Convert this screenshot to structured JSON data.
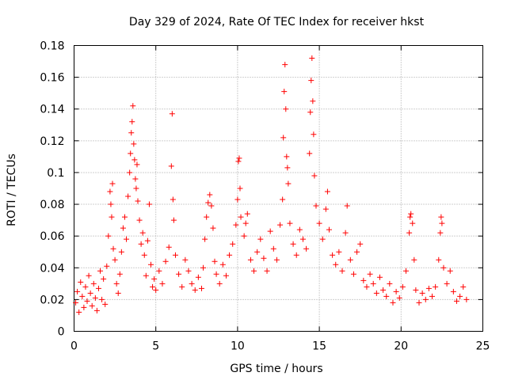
{
  "chart_data": {
    "type": "scatter",
    "title": "Day 329 of 2024, Rate Of TEC Index for receiver hkst",
    "xlabel": "GPS time / hours",
    "ylabel": "ROTI / TECUs",
    "xlim": [
      0,
      25
    ],
    "ylim": [
      0,
      0.18
    ],
    "xticks": [
      0,
      5,
      10,
      15,
      20,
      25
    ],
    "xtick_labels": [
      "0",
      "5",
      "10",
      "15",
      "20",
      "25"
    ],
    "yticks": [
      0,
      0.02,
      0.04,
      0.06,
      0.08,
      0.1,
      0.12,
      0.14,
      0.16,
      0.18
    ],
    "ytick_labels": [
      "0",
      "0.02",
      "0.04",
      "0.06",
      "0.08",
      "0.1",
      "0.12",
      "0.14",
      "0.16",
      "0.18"
    ],
    "grid": true,
    "marker": "+",
    "series": [
      {
        "color": "#ff0000",
        "points": [
          [
            0.1,
            0.018
          ],
          [
            0.2,
            0.025
          ],
          [
            0.3,
            0.012
          ],
          [
            0.4,
            0.031
          ],
          [
            0.5,
            0.022
          ],
          [
            0.6,
            0.015
          ],
          [
            0.7,
            0.028
          ],
          [
            0.8,
            0.019
          ],
          [
            0.9,
            0.035
          ],
          [
            1.0,
            0.024
          ],
          [
            1.1,
            0.016
          ],
          [
            1.2,
            0.03
          ],
          [
            1.3,
            0.021
          ],
          [
            1.4,
            0.013
          ],
          [
            1.5,
            0.027
          ],
          [
            1.6,
            0.038
          ],
          [
            1.7,
            0.02
          ],
          [
            1.8,
            0.033
          ],
          [
            1.9,
            0.017
          ],
          [
            2.0,
            0.041
          ],
          [
            2.1,
            0.06
          ],
          [
            2.2,
            0.088
          ],
          [
            2.25,
            0.08
          ],
          [
            2.3,
            0.072
          ],
          [
            2.35,
            0.093
          ],
          [
            2.4,
            0.052
          ],
          [
            2.5,
            0.045
          ],
          [
            2.6,
            0.03
          ],
          [
            2.7,
            0.024
          ],
          [
            2.8,
            0.036
          ],
          [
            2.9,
            0.05
          ],
          [
            3.0,
            0.065
          ],
          [
            3.1,
            0.072
          ],
          [
            3.2,
            0.058
          ],
          [
            3.3,
            0.085
          ],
          [
            3.4,
            0.1
          ],
          [
            3.45,
            0.112
          ],
          [
            3.5,
            0.125
          ],
          [
            3.55,
            0.132
          ],
          [
            3.6,
            0.142
          ],
          [
            3.65,
            0.118
          ],
          [
            3.7,
            0.108
          ],
          [
            3.75,
            0.096
          ],
          [
            3.8,
            0.09
          ],
          [
            3.85,
            0.105
          ],
          [
            3.9,
            0.082
          ],
          [
            4.0,
            0.07
          ],
          [
            4.1,
            0.055
          ],
          [
            4.2,
            0.062
          ],
          [
            4.3,
            0.048
          ],
          [
            4.4,
            0.035
          ],
          [
            4.5,
            0.057
          ],
          [
            4.6,
            0.08
          ],
          [
            4.7,
            0.042
          ],
          [
            4.8,
            0.028
          ],
          [
            4.9,
            0.033
          ],
          [
            5.0,
            0.026
          ],
          [
            5.2,
            0.038
          ],
          [
            5.4,
            0.03
          ],
          [
            5.6,
            0.044
          ],
          [
            5.8,
            0.053
          ],
          [
            5.95,
            0.104
          ],
          [
            6.0,
            0.137
          ],
          [
            6.05,
            0.083
          ],
          [
            6.1,
            0.07
          ],
          [
            6.2,
            0.048
          ],
          [
            6.4,
            0.036
          ],
          [
            6.6,
            0.028
          ],
          [
            6.8,
            0.045
          ],
          [
            7.0,
            0.038
          ],
          [
            7.2,
            0.03
          ],
          [
            7.4,
            0.026
          ],
          [
            7.6,
            0.034
          ],
          [
            7.8,
            0.027
          ],
          [
            7.9,
            0.04
          ],
          [
            8.0,
            0.058
          ],
          [
            8.1,
            0.072
          ],
          [
            8.2,
            0.081
          ],
          [
            8.3,
            0.086
          ],
          [
            8.4,
            0.079
          ],
          [
            8.5,
            0.065
          ],
          [
            8.6,
            0.044
          ],
          [
            8.7,
            0.036
          ],
          [
            8.9,
            0.03
          ],
          [
            9.1,
            0.042
          ],
          [
            9.3,
            0.035
          ],
          [
            9.5,
            0.048
          ],
          [
            9.7,
            0.055
          ],
          [
            9.9,
            0.067
          ],
          [
            10.0,
            0.083
          ],
          [
            10.05,
            0.107
          ],
          [
            10.1,
            0.109
          ],
          [
            10.15,
            0.09
          ],
          [
            10.2,
            0.072
          ],
          [
            10.4,
            0.06
          ],
          [
            10.5,
            0.068
          ],
          [
            10.6,
            0.074
          ],
          [
            10.8,
            0.045
          ],
          [
            11.0,
            0.038
          ],
          [
            11.2,
            0.05
          ],
          [
            11.4,
            0.058
          ],
          [
            11.6,
            0.046
          ],
          [
            11.8,
            0.038
          ],
          [
            12.0,
            0.063
          ],
          [
            12.2,
            0.052
          ],
          [
            12.4,
            0.045
          ],
          [
            12.6,
            0.067
          ],
          [
            12.75,
            0.083
          ],
          [
            12.8,
            0.122
          ],
          [
            12.85,
            0.151
          ],
          [
            12.9,
            0.168
          ],
          [
            12.95,
            0.14
          ],
          [
            13.0,
            0.11
          ],
          [
            13.05,
            0.103
          ],
          [
            13.1,
            0.093
          ],
          [
            13.2,
            0.068
          ],
          [
            13.4,
            0.055
          ],
          [
            13.6,
            0.048
          ],
          [
            13.8,
            0.064
          ],
          [
            14.0,
            0.058
          ],
          [
            14.2,
            0.052
          ],
          [
            14.4,
            0.112
          ],
          [
            14.45,
            0.138
          ],
          [
            14.5,
            0.158
          ],
          [
            14.55,
            0.172
          ],
          [
            14.6,
            0.145
          ],
          [
            14.65,
            0.124
          ],
          [
            14.7,
            0.098
          ],
          [
            14.8,
            0.079
          ],
          [
            15.0,
            0.068
          ],
          [
            15.2,
            0.058
          ],
          [
            15.4,
            0.077
          ],
          [
            15.5,
            0.088
          ],
          [
            15.6,
            0.064
          ],
          [
            15.8,
            0.048
          ],
          [
            16.0,
            0.042
          ],
          [
            16.2,
            0.05
          ],
          [
            16.4,
            0.038
          ],
          [
            16.6,
            0.062
          ],
          [
            16.7,
            0.079
          ],
          [
            16.9,
            0.045
          ],
          [
            17.1,
            0.036
          ],
          [
            17.3,
            0.05
          ],
          [
            17.5,
            0.055
          ],
          [
            17.7,
            0.032
          ],
          [
            17.9,
            0.028
          ],
          [
            18.1,
            0.036
          ],
          [
            18.3,
            0.03
          ],
          [
            18.5,
            0.024
          ],
          [
            18.7,
            0.034
          ],
          [
            18.9,
            0.026
          ],
          [
            19.1,
            0.022
          ],
          [
            19.3,
            0.03
          ],
          [
            19.5,
            0.018
          ],
          [
            19.7,
            0.025
          ],
          [
            19.9,
            0.021
          ],
          [
            20.1,
            0.028
          ],
          [
            20.3,
            0.038
          ],
          [
            20.5,
            0.062
          ],
          [
            20.55,
            0.072
          ],
          [
            20.6,
            0.074
          ],
          [
            20.7,
            0.068
          ],
          [
            20.8,
            0.045
          ],
          [
            20.9,
            0.026
          ],
          [
            21.1,
            0.018
          ],
          [
            21.3,
            0.024
          ],
          [
            21.5,
            0.02
          ],
          [
            21.7,
            0.027
          ],
          [
            21.9,
            0.022
          ],
          [
            22.1,
            0.028
          ],
          [
            22.3,
            0.045
          ],
          [
            22.4,
            0.062
          ],
          [
            22.45,
            0.072
          ],
          [
            22.5,
            0.068
          ],
          [
            22.6,
            0.04
          ],
          [
            22.8,
            0.03
          ],
          [
            23.0,
            0.038
          ],
          [
            23.2,
            0.025
          ],
          [
            23.4,
            0.019
          ],
          [
            23.6,
            0.022
          ],
          [
            23.8,
            0.028
          ],
          [
            24.0,
            0.02
          ]
        ]
      }
    ]
  }
}
